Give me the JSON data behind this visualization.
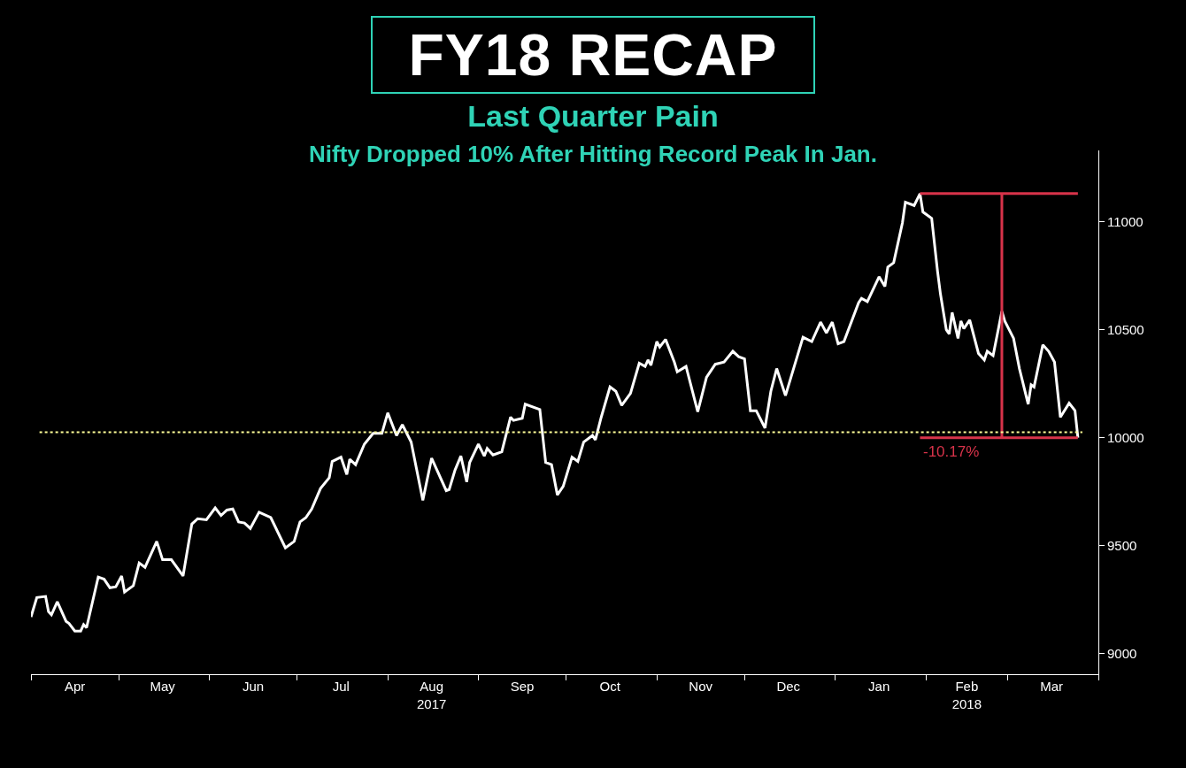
{
  "chart_data": {
    "type": "line",
    "title": "FY18 RECAP",
    "subtitle": "Last Quarter Pain\nNifty Dropped 10% After Hitting Record Peak In Jan.",
    "grid": false,
    "xlim": [
      "2017-04-01",
      "2018-04-01"
    ],
    "xticks": [
      {
        "value": "2017-04-01",
        "label": null
      },
      {
        "value": "2017-05-01",
        "label": null
      },
      {
        "value": "2017-06-01",
        "label": null
      },
      {
        "value": "2017-07-01",
        "label": null
      },
      {
        "value": "2017-08-01",
        "label": null
      },
      {
        "value": "2017-09-01",
        "label": null
      },
      {
        "value": "2017-10-01",
        "label": null
      },
      {
        "value": "2017-11-01",
        "label": null
      },
      {
        "value": "2017-12-01",
        "label": null
      },
      {
        "value": "2018-01-01",
        "label": null
      },
      {
        "value": "2018-02-01",
        "label": null
      },
      {
        "value": "2018-03-01",
        "label": null
      },
      {
        "value": "2018-04-01",
        "label": null
      },
      {
        "value": "2017-04-16",
        "label": "Apr"
      },
      {
        "value": "2017-05-16",
        "label": "May"
      },
      {
        "value": "2017-06-16",
        "label": "Jun"
      },
      {
        "value": "2017-07-16",
        "label": "Jul"
      },
      {
        "value": "2017-08-16",
        "label": "Aug\n2017"
      },
      {
        "value": "2017-09-16",
        "label": "Sep"
      },
      {
        "value": "2017-10-16",
        "label": "Oct"
      },
      {
        "value": "2017-11-16",
        "label": "Nov"
      },
      {
        "value": "2017-12-16",
        "label": "Dec"
      },
      {
        "value": "2018-01-16",
        "label": "Jan"
      },
      {
        "value": "2018-02-15",
        "label": "Feb\n2018"
      },
      {
        "value": "2018-03-16",
        "label": "Mar"
      }
    ],
    "ylim": [
      8905,
      11330
    ],
    "yticks": [
      9000,
      9500,
      10000,
      10500,
      11000
    ],
    "x": [
      "2017-04-01",
      "2017-04-03",
      "2017-04-06",
      "2017-04-07",
      "2017-04-08",
      "2017-04-10",
      "2017-04-13",
      "2017-04-14",
      "2017-04-16",
      "2017-04-18",
      "2017-04-19",
      "2017-04-20",
      "2017-04-24",
      "2017-04-26",
      "2017-04-28",
      "2017-04-30",
      "2017-05-02",
      "2017-05-03",
      "2017-05-06",
      "2017-05-08",
      "2017-05-10",
      "2017-05-14",
      "2017-05-16",
      "2017-05-19",
      "2017-05-23",
      "2017-05-26",
      "2017-05-28",
      "2017-05-31",
      "2017-06-03",
      "2017-06-05",
      "2017-06-07",
      "2017-06-09",
      "2017-06-11",
      "2017-06-13",
      "2017-06-15",
      "2017-06-18",
      "2017-06-22",
      "2017-06-27",
      "2017-06-30",
      "2017-07-02",
      "2017-07-04",
      "2017-07-06",
      "2017-07-09",
      "2017-07-12",
      "2017-07-13",
      "2017-07-16",
      "2017-07-18",
      "2017-07-19",
      "2017-07-21",
      "2017-07-24",
      "2017-07-27",
      "2017-07-30",
      "2017-08-01",
      "2017-08-04",
      "2017-08-06",
      "2017-08-09",
      "2017-08-13",
      "2017-08-16",
      "2017-08-21",
      "2017-08-22",
      "2017-08-24",
      "2017-08-26",
      "2017-08-28",
      "2017-08-29",
      "2017-09-01",
      "2017-09-03",
      "2017-09-04",
      "2017-09-06",
      "2017-09-09",
      "2017-09-12",
      "2017-09-13",
      "2017-09-16",
      "2017-09-17",
      "2017-09-22",
      "2017-09-24",
      "2017-09-26",
      "2017-09-28",
      "2017-09-30",
      "2017-10-03",
      "2017-10-05",
      "2017-10-07",
      "2017-10-10",
      "2017-10-11",
      "2017-10-13",
      "2017-10-16",
      "2017-10-18",
      "2017-10-20",
      "2017-10-23",
      "2017-10-26",
      "2017-10-28",
      "2017-10-29",
      "2017-10-30",
      "2017-11-01",
      "2017-11-02",
      "2017-11-04",
      "2017-11-07",
      "2017-11-08",
      "2017-11-11",
      "2017-11-15",
      "2017-11-18",
      "2017-11-21",
      "2017-11-24",
      "2017-11-27",
      "2017-11-29",
      "2017-12-01",
      "2017-12-03",
      "2017-12-05",
      "2017-12-08",
      "2017-12-10",
      "2017-12-12",
      "2017-12-15",
      "2017-12-21",
      "2017-12-24",
      "2017-12-27",
      "2017-12-29",
      "2017-12-31",
      "2018-01-02",
      "2018-01-04",
      "2018-01-09",
      "2018-01-10",
      "2018-01-12",
      "2018-01-16",
      "2018-01-18",
      "2018-01-19",
      "2018-01-21",
      "2018-01-24",
      "2018-01-25",
      "2018-01-27",
      "2018-01-28",
      "2018-01-30",
      "2018-01-31",
      "2018-02-03",
      "2018-02-05",
      "2018-02-06",
      "2018-02-08",
      "2018-02-09",
      "2018-02-10",
      "2018-02-12",
      "2018-02-13",
      "2018-02-14",
      "2018-02-16",
      "2018-02-19",
      "2018-02-21",
      "2018-02-22",
      "2018-02-24",
      "2018-02-27",
      "2018-02-28",
      "2018-03-03",
      "2018-03-05",
      "2018-03-08",
      "2018-03-09",
      "2018-03-10",
      "2018-03-13",
      "2018-03-15",
      "2018-03-17",
      "2018-03-19",
      "2018-03-22",
      "2018-03-24",
      "2018-03-25"
    ],
    "series": [
      {
        "color": "#ffffff",
        "values": [
          9170,
          9260,
          9265,
          9195,
          9180,
          9240,
          9150,
          9140,
          9105,
          9105,
          9135,
          9120,
          9355,
          9345,
          9305,
          9310,
          9360,
          9285,
          9315,
          9420,
          9400,
          9520,
          9435,
          9435,
          9360,
          9600,
          9625,
          9620,
          9675,
          9640,
          9665,
          9670,
          9610,
          9605,
          9580,
          9655,
          9630,
          9490,
          9520,
          9610,
          9630,
          9670,
          9765,
          9815,
          9890,
          9910,
          9830,
          9900,
          9875,
          9970,
          10020,
          10020,
          10115,
          10010,
          10060,
          9980,
          9710,
          9905,
          9755,
          9760,
          9850,
          9915,
          9795,
          9885,
          9970,
          9915,
          9950,
          9920,
          9935,
          10095,
          10080,
          10090,
          10155,
          10130,
          9885,
          9875,
          9735,
          9775,
          9910,
          9890,
          9980,
          10010,
          9990,
          10095,
          10235,
          10215,
          10150,
          10205,
          10345,
          10330,
          10360,
          10335,
          10445,
          10420,
          10455,
          10350,
          10305,
          10330,
          10120,
          10280,
          10340,
          10350,
          10400,
          10375,
          10365,
          10125,
          10125,
          10045,
          10215,
          10320,
          10195,
          10465,
          10445,
          10535,
          10485,
          10535,
          10435,
          10445,
          10625,
          10645,
          10630,
          10745,
          10700,
          10790,
          10810,
          10995,
          11090,
          11080,
          11075,
          11130,
          11045,
          11015,
          10770,
          10665,
          10500,
          10480,
          10580,
          10460,
          10540,
          10505,
          10545,
          10390,
          10360,
          10400,
          10380,
          10585,
          10540,
          10460,
          10320,
          10155,
          10245,
          10235,
          10430,
          10400,
          10350,
          10095,
          10160,
          10125,
          10000
        ]
      },
      {
        "type": "line",
        "color": "#d8334a",
        "x": [
          "2018-01-30",
          "2018-03-25"
        ],
        "values": [
          11130,
          11130
        ]
      },
      {
        "type": "line",
        "color": "#d8334a",
        "x": [
          "2018-02-27",
          "2018-02-27"
        ],
        "values": [
          11130,
          10000
        ]
      },
      {
        "type": "line",
        "color": "#d8334a",
        "x": [
          "2018-01-30",
          "2018-03-25"
        ],
        "values": [
          10000,
          10000
        ]
      }
    ],
    "ref_lines": [
      {
        "axis": "y",
        "value": 10025,
        "color": "#ffff99",
        "line_style": "dotted"
      }
    ],
    "annotations": [
      {
        "text": "-10.17%",
        "x": "2018-01-30",
        "y": 10000
      }
    ]
  }
}
